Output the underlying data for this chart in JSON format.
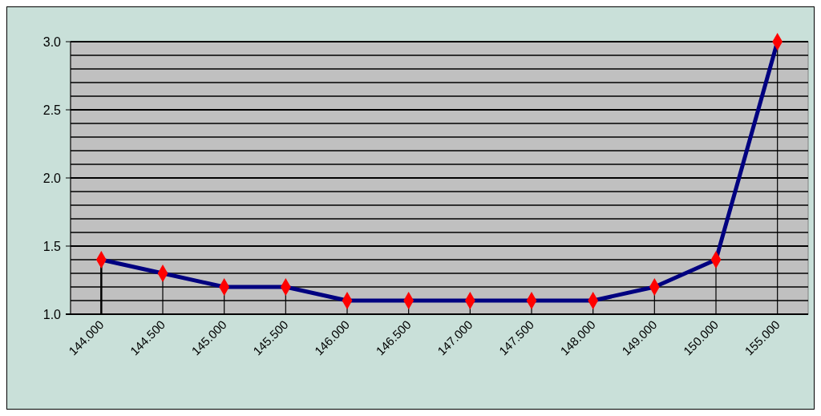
{
  "chart_data": {
    "type": "line",
    "categories": [
      "144.000",
      "144.500",
      "145.000",
      "145.500",
      "146.000",
      "146.500",
      "147.000",
      "147.500",
      "148.000",
      "149.000",
      "150.000",
      "155.000"
    ],
    "series": [
      {
        "color": "#000080",
        "values": [
          1.4,
          1.3,
          1.2,
          1.2,
          1.1,
          1.1,
          1.1,
          1.1,
          1.1,
          1.2,
          1.4,
          3.0
        ],
        "colors": [
          "#ff0000",
          "#ff0000",
          "#ff0000",
          "#ff0000",
          "#ff0000",
          "#ff0000",
          "#ff0000",
          "#ff0000",
          "#ff0000",
          "#ff0000",
          "#ff0000",
          "#ff0000"
        ],
        "errors": [
          [
            1.0,
            1.4
          ],
          [
            1.0,
            1.3
          ],
          [
            1.0,
            1.2
          ],
          [
            1.0,
            1.2
          ],
          [
            1.0,
            1.1
          ],
          [
            1.0,
            1.1
          ],
          [
            1.0,
            1.1
          ],
          [
            1.0,
            1.1
          ],
          [
            1.0,
            1.1
          ],
          [
            1.0,
            1.2
          ],
          [
            1.0,
            1.4
          ],
          [
            1.0,
            3.0
          ]
        ]
      }
    ],
    "marker": "diamond",
    "ylim": [
      1.0,
      3.0
    ],
    "yticks": [
      {
        "value": 1.0,
        "label": "1.0"
      },
      {
        "value": 1.1,
        "label": null
      },
      {
        "value": 1.2,
        "label": null
      },
      {
        "value": 1.3,
        "label": null
      },
      {
        "value": 1.4,
        "label": null
      },
      {
        "value": 1.5,
        "label": "1.5"
      },
      {
        "value": 1.6,
        "label": null
      },
      {
        "value": 1.7,
        "label": null
      },
      {
        "value": 1.8,
        "label": null
      },
      {
        "value": 1.9,
        "label": null
      },
      {
        "value": 2.0,
        "label": "2.0"
      },
      {
        "value": 2.1,
        "label": null
      },
      {
        "value": 2.2,
        "label": null
      },
      {
        "value": 2.3,
        "label": null
      },
      {
        "value": 2.4,
        "label": null
      },
      {
        "value": 2.5,
        "label": "2.5"
      },
      {
        "value": 2.6,
        "label": null
      },
      {
        "value": 2.7,
        "label": null
      },
      {
        "value": 2.8,
        "label": null
      },
      {
        "value": 2.9,
        "label": null
      },
      {
        "value": 3.0,
        "label": "3.0"
      }
    ],
    "grid": "y"
  }
}
